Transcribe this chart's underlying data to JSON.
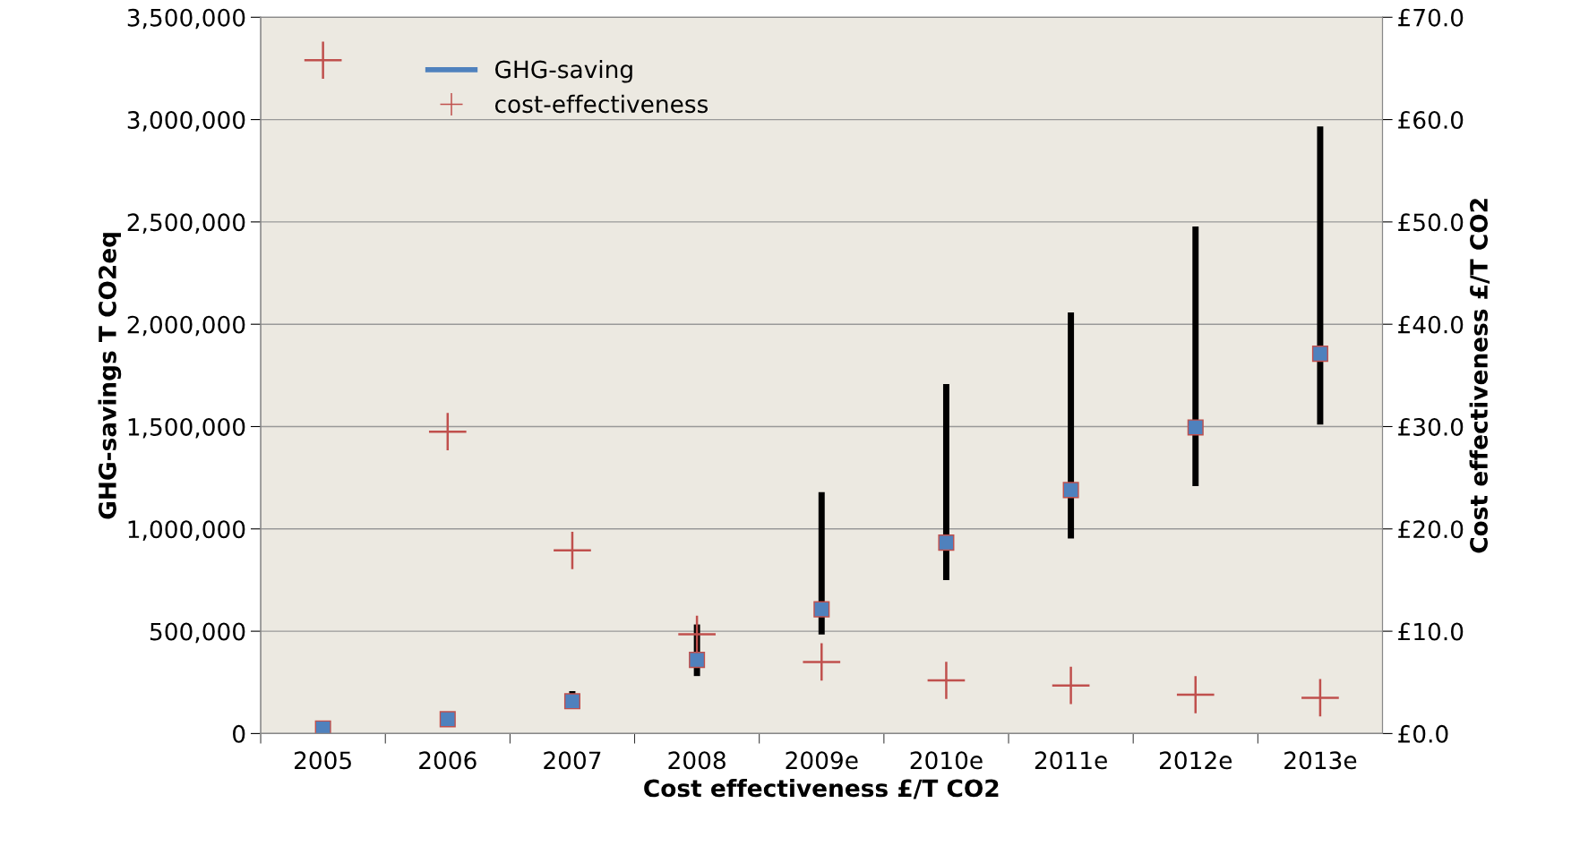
{
  "chart_data": {
    "type": "scatter",
    "xlabel": "Cost effectiveness £/T CO2",
    "ylabel": "GHG-savings T CO2eq",
    "y2label": "Cost effectiveness £/T CO2",
    "categories": [
      "2005",
      "2006",
      "2007",
      "2008",
      "2009e",
      "2010e",
      "2011e",
      "2012e",
      "2013e"
    ],
    "series": [
      {
        "name": "GHG-saving",
        "marker": "square",
        "color": "#4f81bd",
        "values": [
          25000,
          70000,
          158000,
          360000,
          607000,
          933000,
          1190000,
          1496000,
          1856000
        ],
        "errors": [
          null,
          null,
          [
            123000,
            207000
          ],
          [
            281000,
            533000
          ],
          [
            484000,
            1180000
          ],
          [
            750000,
            1708000
          ],
          [
            953000,
            2058000
          ],
          [
            1209000,
            2478000
          ],
          [
            1510000,
            2967000
          ]
        ]
      },
      {
        "name": "cost-effectiveness",
        "marker": "cross",
        "axis": "y2",
        "color": "#c0504d",
        "values": [
          65.8,
          29.5,
          17.9,
          9.7,
          7.0,
          5.2,
          4.7,
          3.8,
          3.5
        ]
      }
    ],
    "ylim": [
      0,
      3500000
    ],
    "yticks": [
      0,
      {
        "value": 500000,
        "label": "500,000"
      },
      {
        "value": 1000000,
        "label": "1,000,000"
      },
      {
        "value": 1500000,
        "label": "1,500,000"
      },
      {
        "value": 2000000,
        "label": "2,000,000"
      },
      {
        "value": 2500000,
        "label": "2,500,000"
      },
      {
        "value": 3000000,
        "label": "3,000,000"
      },
      {
        "value": 3500000,
        "label": "3,500,000"
      }
    ],
    "y2lim": [
      0,
      70
    ],
    "y2ticks": [
      {
        "value": 0,
        "label": "£0.0"
      },
      {
        "value": 10,
        "label": "£10.0"
      },
      {
        "value": 20,
        "label": "£20.0"
      },
      {
        "value": 30,
        "label": "£30.0"
      },
      {
        "value": 40,
        "label": "£40.0"
      },
      {
        "value": 50,
        "label": "£50.0"
      },
      {
        "value": 60,
        "label": "£60.0"
      },
      {
        "value": 70,
        "label": "£70.0"
      }
    ],
    "grid": "y",
    "legend": "top left"
  }
}
